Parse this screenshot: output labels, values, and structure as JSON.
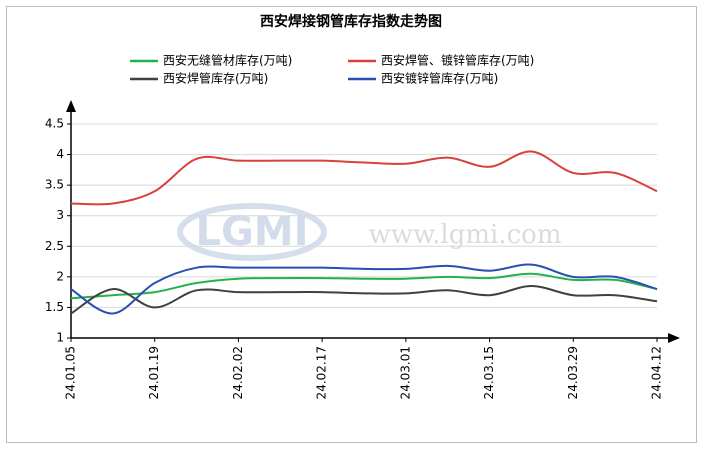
{
  "chart_data": {
    "type": "line",
    "title": "西安焊接钢管库存指数走势图",
    "watermark": {
      "logo": "LGMI",
      "url": "www.lgmi.com"
    },
    "categories": [
      "24.01.05",
      null,
      "24.01.19",
      null,
      "24.02.02",
      null,
      "24.02.17",
      null,
      "24.03.01",
      null,
      "24.03.15",
      null,
      "24.03.29",
      null,
      "24.04.12"
    ],
    "series": [
      {
        "name": "西安无缝管材库存(万吨)",
        "color": "#22b14c",
        "values": [
          1.65,
          1.7,
          1.75,
          1.9,
          1.97,
          1.98,
          1.98,
          1.97,
          1.97,
          2.0,
          1.98,
          2.05,
          1.95,
          1.95,
          1.8
        ]
      },
      {
        "name": "西安焊管、镀锌管库存(万吨)",
        "color": "#d9403a",
        "values": [
          3.2,
          3.2,
          3.4,
          3.93,
          3.9,
          3.9,
          3.9,
          3.87,
          3.85,
          3.95,
          3.8,
          4.05,
          3.7,
          3.7,
          3.4
        ]
      },
      {
        "name": "西安焊管库存(万吨)",
        "color": "#404040",
        "values": [
          1.4,
          1.8,
          1.5,
          1.78,
          1.75,
          1.75,
          1.75,
          1.73,
          1.73,
          1.78,
          1.7,
          1.85,
          1.7,
          1.7,
          1.6
        ]
      },
      {
        "name": "西安镀锌管库存(万吨)",
        "color": "#2a4fb0",
        "values": [
          1.8,
          1.4,
          1.9,
          2.15,
          2.15,
          2.15,
          2.15,
          2.13,
          2.13,
          2.18,
          2.1,
          2.2,
          2.0,
          2.0,
          1.8
        ]
      }
    ],
    "ylim": [
      1,
      4.5
    ],
    "yticks": [
      1,
      1.5,
      2,
      2.5,
      3,
      3.5,
      4,
      4.5
    ],
    "grid": true
  }
}
